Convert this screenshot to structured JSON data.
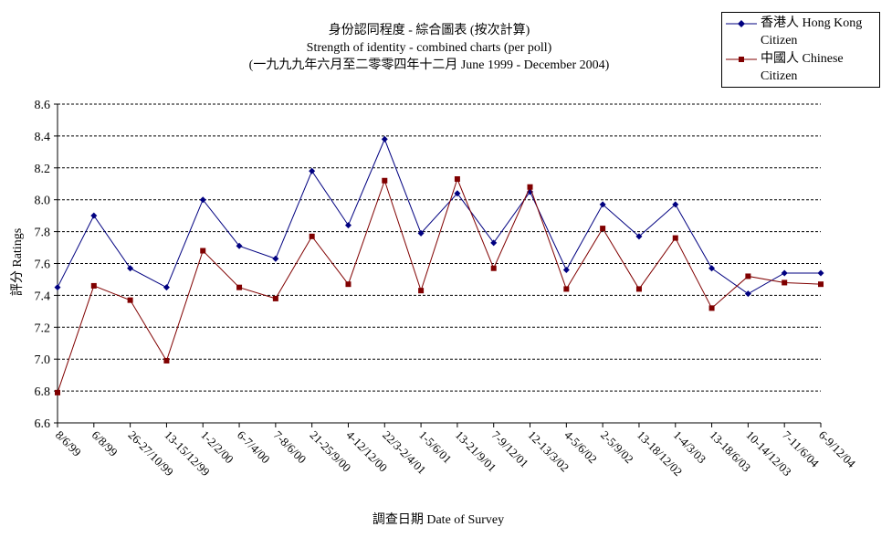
{
  "chart_data": {
    "type": "line",
    "title": "身份認同程度 - 綜合圖表 (按次計算)",
    "subtitle": "Strength of identity -  combined charts (per poll)",
    "subtitle2": "(一九九九年六月至二零零四年十二月 June 1999 - December 2004)",
    "xlabel": "調查日期 Date of Survey",
    "ylabel": "評分 Ratings",
    "ylim": [
      6.6,
      8.6
    ],
    "yticks": [
      "6.6",
      "6.8",
      "7.0",
      "7.2",
      "7.4",
      "7.6",
      "7.8",
      "8.0",
      "8.2",
      "8.4",
      "8.6"
    ],
    "grid": true,
    "legend_position": "top-right",
    "categories": [
      "8/6/99",
      "6/8/99",
      "26-27/10/99",
      "13-15/12/99",
      "1-2/2/00",
      "6-7/4/00",
      "7-8/6/00",
      "21-25/9/00",
      "4-12/12/00",
      "22/3-2/4/01",
      "1-5/6/01",
      "13-21/9/01",
      "7-9/12/01",
      "12-13/3/02",
      "4-5/6/02",
      "2-5/9/02",
      "13-18/12/02",
      "1-4/3/03",
      "13-18/6/03",
      "10-14/12/03",
      "7-11/6/04",
      "6-9/12/04"
    ],
    "series": [
      {
        "name": "香港人 Hong Kong Citizen",
        "color": "#000080",
        "marker": "diamond",
        "values": [
          7.45,
          7.9,
          7.57,
          7.45,
          8.0,
          7.71,
          7.63,
          8.18,
          7.84,
          8.38,
          7.79,
          8.04,
          7.73,
          8.05,
          7.56,
          7.97,
          7.77,
          7.97,
          7.57,
          7.41,
          7.54,
          7.54
        ]
      },
      {
        "name": "中國人 Chinese Citizen",
        "color": "#800000",
        "marker": "square",
        "values": [
          6.79,
          7.46,
          7.37,
          6.99,
          7.68,
          7.45,
          7.38,
          7.77,
          7.47,
          8.12,
          7.43,
          8.13,
          7.57,
          8.08,
          7.44,
          7.82,
          7.44,
          7.76,
          7.32,
          7.52,
          7.48,
          7.47
        ]
      }
    ]
  }
}
